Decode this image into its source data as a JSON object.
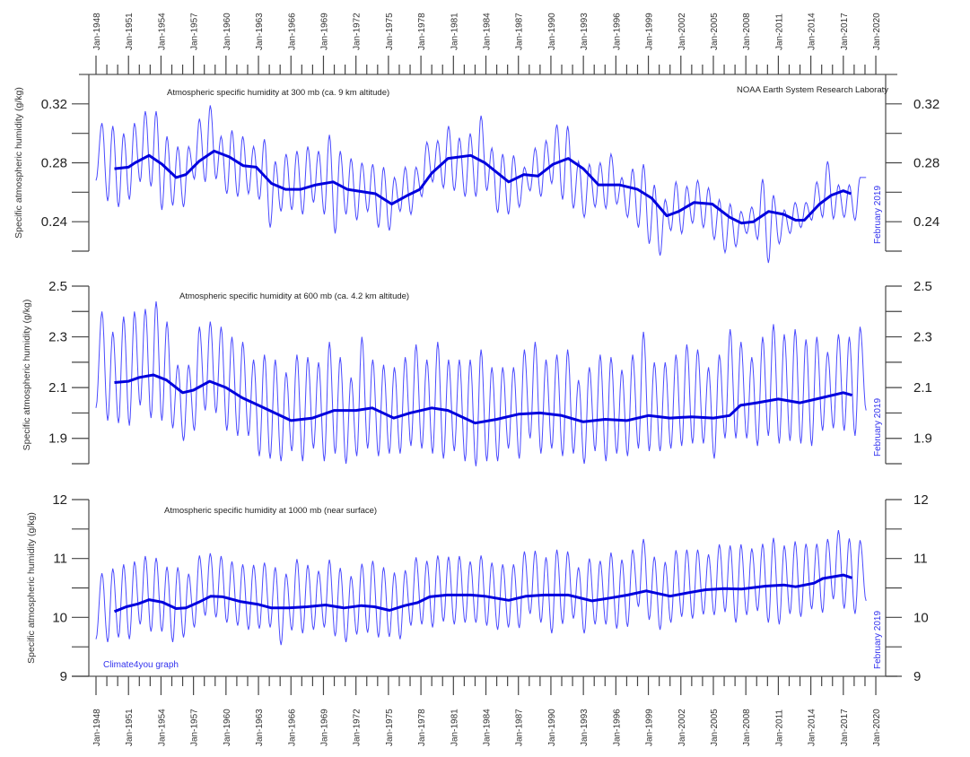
{
  "source_note": "NOAA Earth System Research Laboraty",
  "credit": "Climate4you graph",
  "x_ticks": [
    "Jan-1948",
    "Jan-1951",
    "Jan-1954",
    "Jan-1957",
    "Jan-1960",
    "Jan-1963",
    "Jan-1966",
    "Jan-1969",
    "Jan-1972",
    "Jan-1975",
    "Jan-1978",
    "Jan-1981",
    "Jan-1984",
    "Jan-1987",
    "Jan-1990",
    "Jan-1993",
    "Jan-1996",
    "Jan-1999",
    "Jan-2002",
    "Jan-2005",
    "Jan-2008",
    "Jan-2011",
    "Jan-2014",
    "Jan-2017",
    "Jan-2020"
  ],
  "colors": {
    "monthly": "#2a2aff",
    "running_mean": "#0000dd",
    "note": "#3333ee"
  },
  "chart_data": [
    {
      "type": "line",
      "title": "Atmospheric specific humidity at 300 mb (ca. 9 km altitude)",
      "ylabel": "Specific atmospheric humidity (g/kg)",
      "last_month_label": "February 2019",
      "xlim": [
        1948,
        2020
      ],
      "ylim": [
        0.22,
        0.34
      ],
      "ytick_labels": [
        "0.32",
        "0.28",
        "0.24"
      ],
      "ytick_values": [
        0.32,
        0.28,
        0.24
      ],
      "yminor": [
        0.3,
        0.26,
        0.22
      ],
      "monthly_first_value": 0.268,
      "monthly_last_value": 0.27,
      "monthly_annual_max_1948_2018": [
        0.307,
        0.305,
        0.3,
        0.307,
        0.315,
        0.315,
        0.298,
        0.291,
        0.291,
        0.31,
        0.319,
        0.298,
        0.302,
        0.298,
        0.291,
        0.296,
        0.281,
        0.286,
        0.288,
        0.291,
        0.288,
        0.299,
        0.288,
        0.283,
        0.28,
        0.279,
        0.277,
        0.27,
        0.277,
        0.277,
        0.294,
        0.295,
        0.305,
        0.297,
        0.3,
        0.312,
        0.29,
        0.286,
        0.285,
        0.277,
        0.29,
        0.295,
        0.306,
        0.305,
        0.281,
        0.279,
        0.28,
        0.286,
        0.27,
        0.276,
        0.279,
        0.265,
        0.255,
        0.267,
        0.264,
        0.268,
        0.263,
        0.255,
        0.252,
        0.247,
        0.25,
        0.269,
        0.258,
        0.248,
        0.253,
        0.253,
        0.267,
        0.281,
        0.265,
        0.265,
        0.27
      ],
      "monthly_annual_min_1948_2018": [
        0.27,
        0.254,
        0.25,
        0.255,
        0.267,
        0.264,
        0.248,
        0.251,
        0.25,
        0.269,
        0.267,
        0.269,
        0.259,
        0.257,
        0.259,
        0.255,
        0.236,
        0.247,
        0.248,
        0.245,
        0.253,
        0.245,
        0.232,
        0.245,
        0.241,
        0.247,
        0.236,
        0.234,
        0.247,
        0.245,
        0.257,
        0.267,
        0.263,
        0.261,
        0.257,
        0.257,
        0.261,
        0.246,
        0.245,
        0.25,
        0.261,
        0.257,
        0.266,
        0.255,
        0.249,
        0.243,
        0.25,
        0.249,
        0.252,
        0.243,
        0.236,
        0.225,
        0.217,
        0.234,
        0.232,
        0.239,
        0.236,
        0.228,
        0.219,
        0.223,
        0.232,
        0.228,
        0.212,
        0.225,
        0.232,
        0.236,
        0.241,
        0.243,
        0.242,
        0.243,
        0.241
      ],
      "running_mean": [
        [
          1949.7,
          0.276
        ],
        [
          1951,
          0.277
        ],
        [
          1951.6,
          0.28
        ],
        [
          1952.9,
          0.285
        ],
        [
          1954.1,
          0.279
        ],
        [
          1955.4,
          0.27
        ],
        [
          1956.3,
          0.272
        ],
        [
          1957.5,
          0.281
        ],
        [
          1958.9,
          0.288
        ],
        [
          1960.3,
          0.284
        ],
        [
          1961.6,
          0.278
        ],
        [
          1962.8,
          0.277
        ],
        [
          1964.2,
          0.266
        ],
        [
          1965.5,
          0.262
        ],
        [
          1966.9,
          0.262
        ],
        [
          1968.3,
          0.265
        ],
        [
          1969.9,
          0.267
        ],
        [
          1971.2,
          0.262
        ],
        [
          1973.8,
          0.259
        ],
        [
          1975.3,
          0.252
        ],
        [
          1976.8,
          0.258
        ],
        [
          1977.9,
          0.262
        ],
        [
          1979,
          0.273
        ],
        [
          1980.5,
          0.283
        ],
        [
          1982.6,
          0.285
        ],
        [
          1983.9,
          0.28
        ],
        [
          1986.1,
          0.267
        ],
        [
          1987.5,
          0.272
        ],
        [
          1988.8,
          0.271
        ],
        [
          1990.2,
          0.279
        ],
        [
          1991.6,
          0.283
        ],
        [
          1993,
          0.276
        ],
        [
          1994.4,
          0.265
        ],
        [
          1996.3,
          0.265
        ],
        [
          1998,
          0.262
        ],
        [
          1999.3,
          0.256
        ],
        [
          2000.7,
          0.244
        ],
        [
          2001.8,
          0.247
        ],
        [
          2003.2,
          0.253
        ],
        [
          2004.9,
          0.252
        ],
        [
          2006.5,
          0.243
        ],
        [
          2007.6,
          0.239
        ],
        [
          2008.7,
          0.24
        ],
        [
          2010.1,
          0.247
        ],
        [
          2011.5,
          0.245
        ],
        [
          2012.6,
          0.241
        ],
        [
          2013.4,
          0.241
        ],
        [
          2014.8,
          0.252
        ],
        [
          2015.9,
          0.258
        ],
        [
          2017,
          0.261
        ],
        [
          2017.7,
          0.259
        ]
      ]
    },
    {
      "type": "line",
      "title": "Atmospheric specific humidity at 600 mb (ca. 4.2 km altitude)",
      "ylabel": "Specific atmospheric humidity (g/kg)",
      "last_month_label": "February 2019",
      "xlim": [
        1948,
        2020
      ],
      "ylim": [
        1.8,
        2.5
      ],
      "ytick_labels": [
        "2.5",
        "2.3",
        "2.1",
        "1.9"
      ],
      "ytick_values": [
        2.5,
        2.3,
        2.1,
        1.9
      ],
      "yminor": [
        2.4,
        2.2,
        2.0,
        1.8
      ],
      "monthly_first_value": 2.02,
      "monthly_last_value": 2.01,
      "monthly_annual_max_1948_2018": [
        2.4,
        2.32,
        2.38,
        2.4,
        2.41,
        2.44,
        2.36,
        2.19,
        2.19,
        2.34,
        2.36,
        2.34,
        2.3,
        2.28,
        2.21,
        2.23,
        2.21,
        2.16,
        2.23,
        2.22,
        2.2,
        2.28,
        2.22,
        2.14,
        2.3,
        2.21,
        2.19,
        2.18,
        2.22,
        2.27,
        2.21,
        2.28,
        2.21,
        2.21,
        2.21,
        2.25,
        2.18,
        2.18,
        2.18,
        2.25,
        2.28,
        2.21,
        2.23,
        2.25,
        2.13,
        2.18,
        2.23,
        2.22,
        2.17,
        2.23,
        2.32,
        2.2,
        2.2,
        2.23,
        2.27,
        2.25,
        2.18,
        2.23,
        2.33,
        2.28,
        2.22,
        2.3,
        2.35,
        2.31,
        2.33,
        2.29,
        2.3,
        2.24,
        2.31,
        2.3,
        2.34
      ],
      "monthly_annual_min_1948_2018": [
        2.02,
        1.97,
        1.96,
        1.95,
        2.03,
        1.98,
        1.97,
        1.94,
        1.89,
        1.93,
        2.01,
        2.0,
        1.93,
        1.91,
        1.91,
        1.83,
        1.82,
        1.81,
        1.85,
        1.81,
        1.86,
        1.81,
        1.84,
        1.8,
        1.83,
        1.86,
        1.83,
        1.84,
        1.84,
        1.87,
        1.86,
        1.84,
        1.82,
        1.85,
        1.81,
        1.79,
        1.81,
        1.81,
        1.86,
        1.82,
        1.9,
        1.84,
        1.86,
        1.83,
        1.84,
        1.8,
        1.85,
        1.81,
        1.84,
        1.83,
        1.86,
        1.85,
        1.85,
        1.86,
        1.87,
        1.88,
        1.88,
        1.82,
        1.9,
        1.9,
        1.9,
        1.87,
        1.91,
        1.88,
        1.89,
        1.88,
        1.87,
        1.93,
        1.94,
        1.93,
        1.91
      ],
      "running_mean": [
        [
          1949.7,
          2.12
        ],
        [
          1951,
          2.125
        ],
        [
          1952,
          2.14
        ],
        [
          1953.3,
          2.15
        ],
        [
          1954.5,
          2.13
        ],
        [
          1956,
          2.08
        ],
        [
          1957,
          2.09
        ],
        [
          1958.5,
          2.125
        ],
        [
          1960,
          2.1
        ],
        [
          1961.5,
          2.06
        ],
        [
          1963,
          2.03
        ],
        [
          1964.5,
          2.0
        ],
        [
          1966,
          1.97
        ],
        [
          1968,
          1.98
        ],
        [
          1970,
          2.01
        ],
        [
          1972,
          2.01
        ],
        [
          1973.5,
          2.02
        ],
        [
          1975.5,
          1.98
        ],
        [
          1977,
          2.0
        ],
        [
          1979,
          2.02
        ],
        [
          1980.5,
          2.01
        ],
        [
          1983,
          1.96
        ],
        [
          1985,
          1.975
        ],
        [
          1987,
          1.995
        ],
        [
          1989,
          2.0
        ],
        [
          1991,
          1.99
        ],
        [
          1993,
          1.965
        ],
        [
          1995,
          1.975
        ],
        [
          1997,
          1.97
        ],
        [
          1999,
          1.99
        ],
        [
          2001,
          1.98
        ],
        [
          2003,
          1.985
        ],
        [
          2005,
          1.98
        ],
        [
          2006.5,
          1.99
        ],
        [
          2007.5,
          2.03
        ],
        [
          2009,
          2.04
        ],
        [
          2011,
          2.055
        ],
        [
          2013,
          2.04
        ],
        [
          2015,
          2.06
        ],
        [
          2017,
          2.08
        ],
        [
          2017.8,
          2.07
        ]
      ]
    },
    {
      "type": "line",
      "title": "Atmospheric specific humidity at 1000 mb (near surface)",
      "ylabel": "Specific atmospheric humidity (g/kg)",
      "last_month_label": "February 2019",
      "xlim": [
        1948,
        2020
      ],
      "ylim": [
        9,
        12
      ],
      "ytick_labels": [
        "12",
        "11",
        "10",
        "9"
      ],
      "ytick_values": [
        12,
        11,
        10,
        9
      ],
      "yminor": [
        11.5,
        10.5,
        9.5
      ],
      "monthly_first_value": 9.63,
      "monthly_last_value": 10.28,
      "monthly_annual_max_1948_2018": [
        10.75,
        10.83,
        10.9,
        10.95,
        11.04,
        11.01,
        10.86,
        10.85,
        10.74,
        11.05,
        11.09,
        11.04,
        10.95,
        10.9,
        10.89,
        10.93,
        10.85,
        10.74,
        10.99,
        10.89,
        10.79,
        10.98,
        10.84,
        10.7,
        10.91,
        10.96,
        10.85,
        10.76,
        10.8,
        11.02,
        10.96,
        11.05,
        11.03,
        11.04,
        10.95,
        11.05,
        10.93,
        10.9,
        10.9,
        11.12,
        11.13,
        11.02,
        11.15,
        11.12,
        10.85,
        11.0,
        10.96,
        11.1,
        10.98,
        11.15,
        11.33,
        11.03,
        10.94,
        11.14,
        11.15,
        11.15,
        11.07,
        11.24,
        11.22,
        11.24,
        11.17,
        11.25,
        11.35,
        11.22,
        11.29,
        11.25,
        11.25,
        11.33,
        11.48,
        11.34,
        11.31
      ],
      "monthly_annual_min_1948_2018": [
        9.63,
        9.58,
        9.66,
        9.63,
        9.88,
        9.76,
        9.76,
        9.58,
        9.66,
        9.83,
        10.03,
        10.0,
        9.91,
        9.86,
        9.79,
        9.81,
        9.83,
        9.53,
        9.78,
        9.73,
        9.79,
        9.83,
        9.68,
        9.58,
        9.71,
        9.74,
        9.66,
        9.67,
        9.63,
        9.86,
        9.88,
        9.83,
        9.93,
        9.88,
        9.91,
        9.91,
        9.86,
        9.79,
        9.83,
        9.82,
        10.06,
        9.91,
        9.73,
        9.89,
        9.98,
        9.73,
        9.88,
        9.88,
        9.81,
        9.84,
        10.18,
        9.96,
        9.79,
        9.91,
        10.01,
        9.98,
        10.05,
        10.04,
        10.09,
        9.91,
        10.04,
        10.11,
        9.91,
        9.88,
        10.06,
        10.01,
        10.14,
        10.08,
        10.31,
        10.15,
        10.06
      ],
      "running_mean": [
        [
          1949.7,
          10.1
        ],
        [
          1950.8,
          10.18
        ],
        [
          1951.9,
          10.23
        ],
        [
          1952.9,
          10.3
        ],
        [
          1954.1,
          10.26
        ],
        [
          1955.4,
          10.15
        ],
        [
          1956.3,
          10.16
        ],
        [
          1957.5,
          10.26
        ],
        [
          1958.6,
          10.36
        ],
        [
          1959.7,
          10.35
        ],
        [
          1961.3,
          10.27
        ],
        [
          1963,
          10.22
        ],
        [
          1964.2,
          10.16
        ],
        [
          1965.8,
          10.16
        ],
        [
          1967.5,
          10.18
        ],
        [
          1969.2,
          10.21
        ],
        [
          1970.9,
          10.16
        ],
        [
          1972.5,
          10.2
        ],
        [
          1973.7,
          10.18
        ],
        [
          1975.1,
          10.12
        ],
        [
          1976.5,
          10.2
        ],
        [
          1977.7,
          10.25
        ],
        [
          1978.8,
          10.35
        ],
        [
          1980.4,
          10.38
        ],
        [
          1982.6,
          10.38
        ],
        [
          1983.9,
          10.36
        ],
        [
          1986.1,
          10.29
        ],
        [
          1987.7,
          10.36
        ],
        [
          1989.4,
          10.38
        ],
        [
          1991.6,
          10.38
        ],
        [
          1993.8,
          10.28
        ],
        [
          1995.5,
          10.33
        ],
        [
          1997.1,
          10.38
        ],
        [
          1998.8,
          10.45
        ],
        [
          2001,
          10.36
        ],
        [
          2002.7,
          10.42
        ],
        [
          2004.3,
          10.47
        ],
        [
          2006,
          10.49
        ],
        [
          2007.6,
          10.48
        ],
        [
          2009.8,
          10.53
        ],
        [
          2011.5,
          10.55
        ],
        [
          2012.6,
          10.52
        ],
        [
          2014.3,
          10.58
        ],
        [
          2015.1,
          10.66
        ],
        [
          2017,
          10.72
        ],
        [
          2017.8,
          10.67
        ]
      ]
    }
  ]
}
